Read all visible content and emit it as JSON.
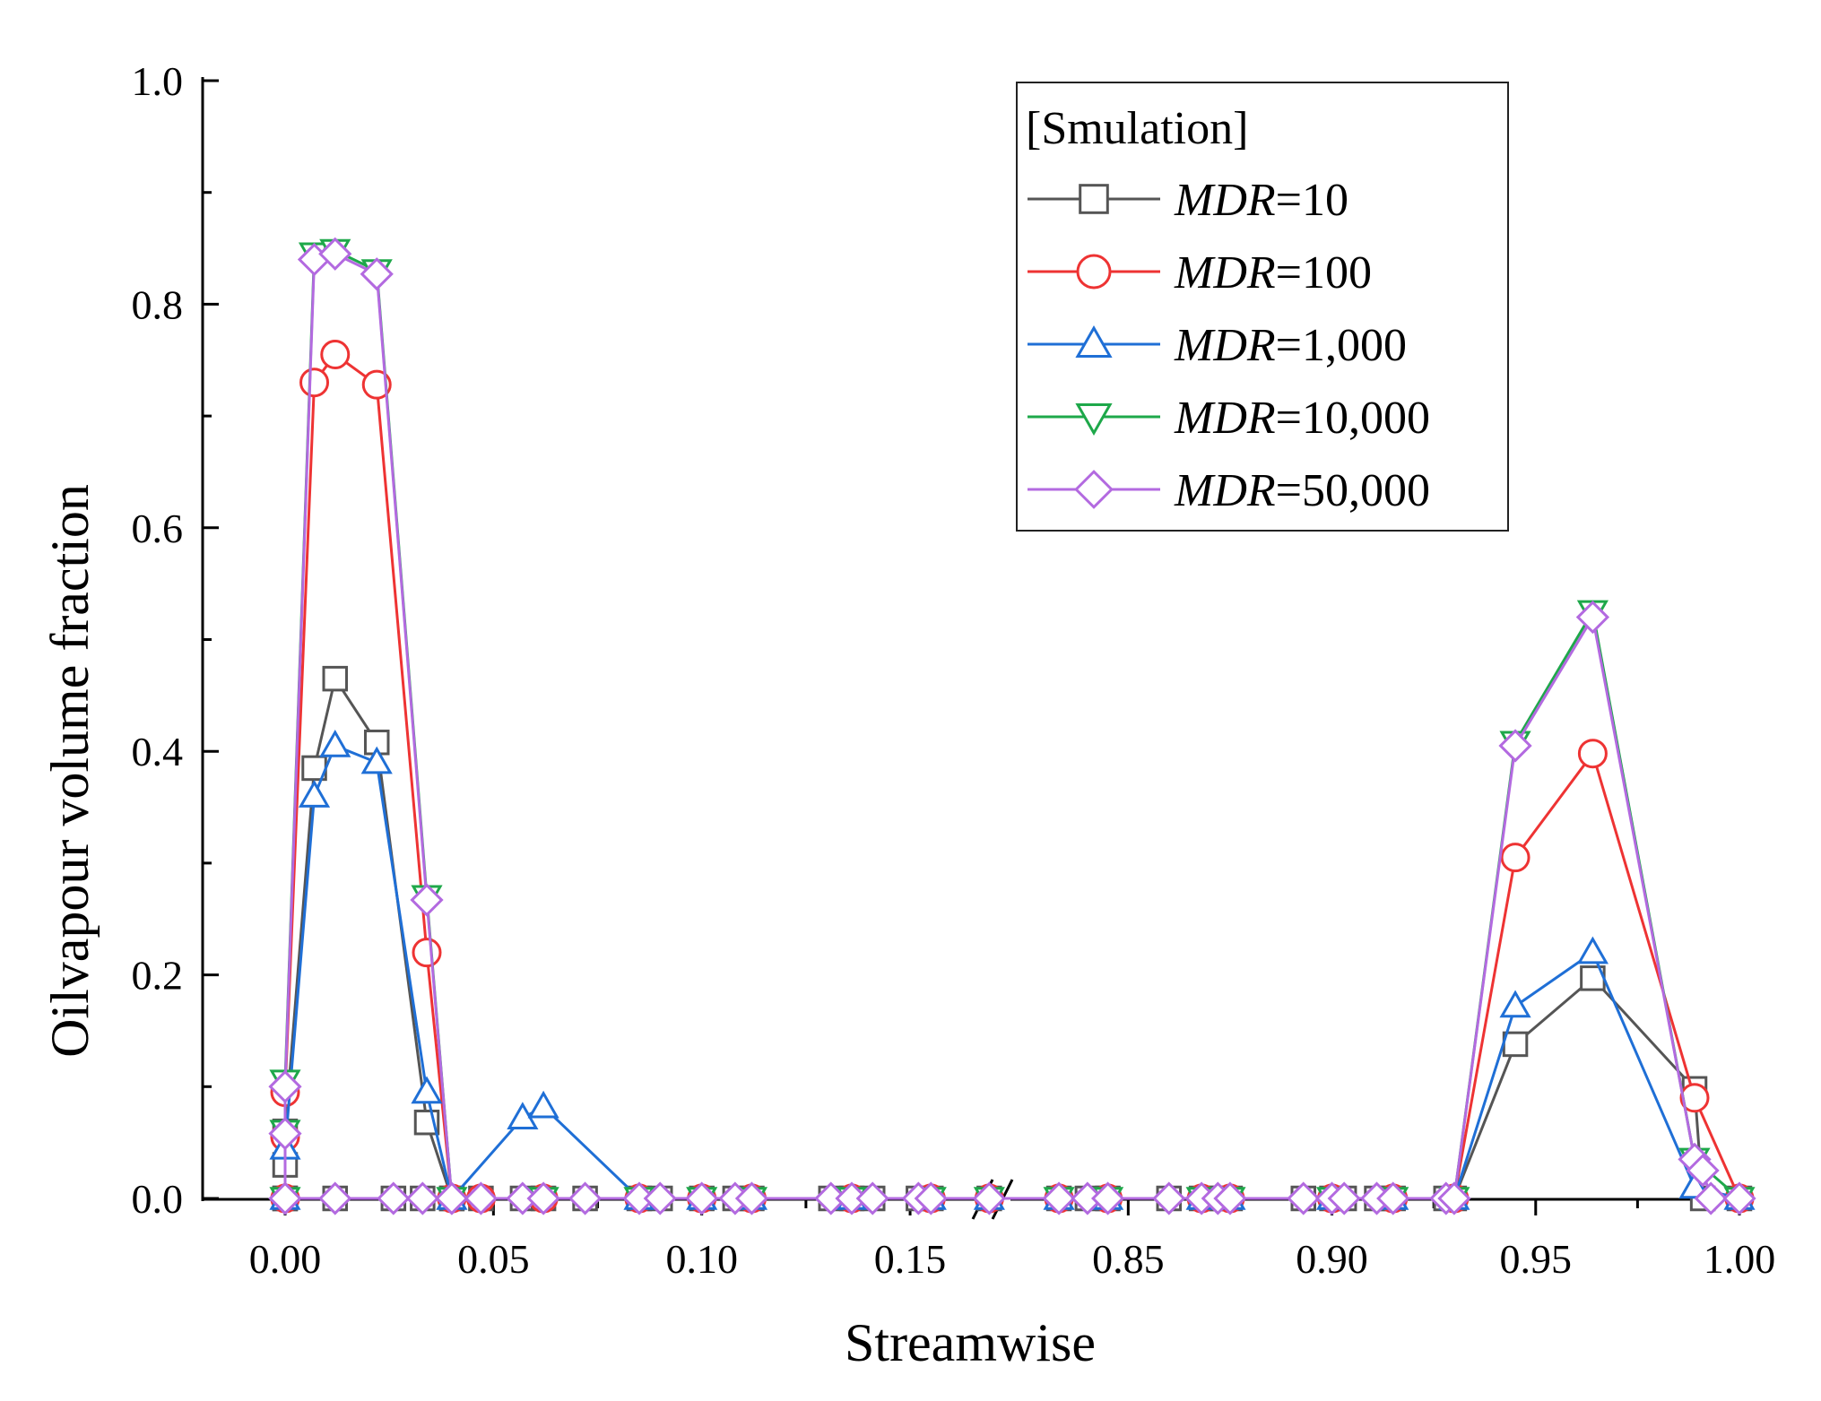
{
  "chart_data": {
    "type": "line",
    "xlabel": "Streamwise",
    "ylabel": "Oilvapour volume fraction",
    "ylim": [
      0,
      1.0
    ],
    "y_ticks": [
      "0.0",
      "0.2",
      "0.4",
      "0.6",
      "0.8",
      "1.0"
    ],
    "x_axis_break": {
      "from": 0.17,
      "to": 0.82
    },
    "x_ticks_left": [
      "0.00",
      "0.05",
      "0.10",
      "0.15"
    ],
    "x_ticks_right": [
      "0.85",
      "0.90",
      "0.95",
      "1.00"
    ],
    "legend": {
      "title": "[Smulation]",
      "position": "top-right",
      "items": [
        {
          "var": "MDR",
          "text": "=10"
        },
        {
          "var": "MDR",
          "text": "=100"
        },
        {
          "var": "MDR",
          "text": "=1,000"
        },
        {
          "var": "MDR",
          "text": "=10,000"
        },
        {
          "var": "MDR",
          "text": "=50,000"
        }
      ]
    },
    "series": [
      {
        "name": "MDR=10",
        "color": "#555555",
        "marker": "square",
        "points": [
          [
            0.0,
            0.0
          ],
          [
            0.0,
            0.03
          ],
          [
            0.0,
            0.06
          ],
          [
            0.007,
            0.385
          ],
          [
            0.012,
            0.465
          ],
          [
            0.022,
            0.408
          ],
          [
            0.034,
            0.068
          ],
          [
            0.04,
            0.0
          ],
          [
            0.0,
            0.0
          ],
          [
            0.012,
            0.0
          ],
          [
            0.026,
            0.0
          ],
          [
            0.033,
            0.0
          ],
          [
            0.04,
            0.0
          ],
          [
            0.047,
            0.0
          ],
          [
            0.057,
            0.0
          ],
          [
            0.062,
            0.0
          ],
          [
            0.072,
            0.0
          ],
          [
            0.085,
            0.0
          ],
          [
            0.09,
            0.0
          ],
          [
            0.1,
            0.0
          ],
          [
            0.108,
            0.0
          ],
          [
            0.112,
            0.0
          ],
          [
            0.131,
            0.0
          ],
          [
            0.136,
            0.0
          ],
          [
            0.141,
            0.0
          ],
          [
            0.152,
            0.0
          ],
          [
            0.155,
            0.0
          ],
          [
            0.169,
            0.0
          ],
          [
            0.833,
            0.0
          ],
          [
            0.84,
            0.0
          ],
          [
            0.845,
            0.0
          ],
          [
            0.86,
            0.0
          ],
          [
            0.868,
            0.0
          ],
          [
            0.872,
            0.0
          ],
          [
            0.875,
            0.0
          ],
          [
            0.893,
            0.0
          ],
          [
            0.9,
            0.0
          ],
          [
            0.903,
            0.0
          ],
          [
            0.911,
            0.0
          ],
          [
            0.915,
            0.0
          ],
          [
            0.928,
            0.0
          ],
          [
            0.93,
            0.0
          ],
          [
            0.945,
            0.138
          ],
          [
            0.964,
            0.197
          ],
          [
            0.989,
            0.098
          ],
          [
            0.991,
            0.0
          ],
          [
            1.0,
            0.0
          ]
        ]
      },
      {
        "name": "MDR=100",
        "color": "#ee3333",
        "marker": "circle",
        "points": [
          [
            0.0,
            0.0
          ],
          [
            0.0,
            0.055
          ],
          [
            0.0,
            0.095
          ],
          [
            0.007,
            0.73
          ],
          [
            0.012,
            0.755
          ],
          [
            0.022,
            0.728
          ],
          [
            0.034,
            0.22
          ],
          [
            0.04,
            0.0
          ],
          [
            0.047,
            0.0
          ],
          [
            0.062,
            0.0
          ],
          [
            0.085,
            0.0
          ],
          [
            0.1,
            0.0
          ],
          [
            0.112,
            0.0
          ],
          [
            0.136,
            0.0
          ],
          [
            0.155,
            0.0
          ],
          [
            0.169,
            0.0
          ],
          [
            0.833,
            0.0
          ],
          [
            0.845,
            0.0
          ],
          [
            0.868,
            0.0
          ],
          [
            0.875,
            0.0
          ],
          [
            0.9,
            0.0
          ],
          [
            0.915,
            0.0
          ],
          [
            0.93,
            0.0
          ],
          [
            0.945,
            0.305
          ],
          [
            0.964,
            0.398
          ],
          [
            0.989,
            0.09
          ],
          [
            1.0,
            0.0
          ]
        ]
      },
      {
        "name": "MDR=1,000",
        "color": "#1f6fd6",
        "marker": "triangle-up",
        "points": [
          [
            0.0,
            0.0
          ],
          [
            0.0,
            0.045
          ],
          [
            0.007,
            0.36
          ],
          [
            0.012,
            0.405
          ],
          [
            0.022,
            0.39
          ],
          [
            0.034,
            0.095
          ],
          [
            0.04,
            0.0
          ],
          [
            0.057,
            0.072
          ],
          [
            0.062,
            0.082
          ],
          [
            0.085,
            0.0
          ],
          [
            0.1,
            0.0
          ],
          [
            0.112,
            0.0
          ],
          [
            0.136,
            0.0
          ],
          [
            0.155,
            0.0
          ],
          [
            0.169,
            0.0
          ],
          [
            0.833,
            0.0
          ],
          [
            0.845,
            0.0
          ],
          [
            0.868,
            0.0
          ],
          [
            0.875,
            0.0
          ],
          [
            0.9,
            0.0
          ],
          [
            0.915,
            0.0
          ],
          [
            0.93,
            0.0
          ],
          [
            0.945,
            0.172
          ],
          [
            0.964,
            0.22
          ],
          [
            0.989,
            0.01
          ],
          [
            1.0,
            0.0
          ]
        ]
      },
      {
        "name": "MDR=10,000",
        "color": "#1ea84a",
        "marker": "triangle-down",
        "points": [
          [
            0.0,
            0.0
          ],
          [
            0.0,
            0.06
          ],
          [
            0.0,
            0.105
          ],
          [
            0.007,
            0.845
          ],
          [
            0.012,
            0.848
          ],
          [
            0.022,
            0.83
          ],
          [
            0.034,
            0.27
          ],
          [
            0.04,
            0.0
          ],
          [
            0.062,
            0.0
          ],
          [
            0.085,
            0.0
          ],
          [
            0.1,
            0.0
          ],
          [
            0.112,
            0.0
          ],
          [
            0.136,
            0.0
          ],
          [
            0.155,
            0.0
          ],
          [
            0.169,
            0.0
          ],
          [
            0.833,
            0.0
          ],
          [
            0.845,
            0.0
          ],
          [
            0.868,
            0.0
          ],
          [
            0.875,
            0.0
          ],
          [
            0.9,
            0.0
          ],
          [
            0.915,
            0.0
          ],
          [
            0.93,
            0.0
          ],
          [
            0.945,
            0.408
          ],
          [
            0.964,
            0.525
          ],
          [
            0.989,
            0.035
          ],
          [
            1.0,
            0.0
          ]
        ]
      },
      {
        "name": "MDR=50,000",
        "color": "#b36ae0",
        "marker": "diamond",
        "points": [
          [
            0.0,
            0.0
          ],
          [
            0.0,
            0.058
          ],
          [
            0.0,
            0.1
          ],
          [
            0.007,
            0.84
          ],
          [
            0.012,
            0.845
          ],
          [
            0.022,
            0.827
          ],
          [
            0.034,
            0.267
          ],
          [
            0.04,
            0.0
          ],
          [
            0.0,
            0.0
          ],
          [
            0.012,
            0.0
          ],
          [
            0.026,
            0.0
          ],
          [
            0.033,
            0.0
          ],
          [
            0.04,
            0.0
          ],
          [
            0.047,
            0.0
          ],
          [
            0.057,
            0.0
          ],
          [
            0.062,
            0.0
          ],
          [
            0.072,
            0.0
          ],
          [
            0.085,
            0.0
          ],
          [
            0.09,
            0.0
          ],
          [
            0.1,
            0.0
          ],
          [
            0.108,
            0.0
          ],
          [
            0.112,
            0.0
          ],
          [
            0.131,
            0.0
          ],
          [
            0.136,
            0.0
          ],
          [
            0.141,
            0.0
          ],
          [
            0.152,
            0.0
          ],
          [
            0.155,
            0.0
          ],
          [
            0.169,
            0.0
          ],
          [
            0.833,
            0.0
          ],
          [
            0.84,
            0.0
          ],
          [
            0.845,
            0.0
          ],
          [
            0.86,
            0.0
          ],
          [
            0.868,
            0.0
          ],
          [
            0.872,
            0.0
          ],
          [
            0.875,
            0.0
          ],
          [
            0.893,
            0.0
          ],
          [
            0.9,
            0.0
          ],
          [
            0.903,
            0.0
          ],
          [
            0.911,
            0.0
          ],
          [
            0.915,
            0.0
          ],
          [
            0.928,
            0.0
          ],
          [
            0.93,
            0.0
          ],
          [
            0.945,
            0.405
          ],
          [
            0.964,
            0.52
          ],
          [
            0.989,
            0.035
          ],
          [
            0.991,
            0.025
          ],
          [
            0.993,
            0.0
          ],
          [
            1.0,
            0.0
          ]
        ]
      }
    ]
  }
}
